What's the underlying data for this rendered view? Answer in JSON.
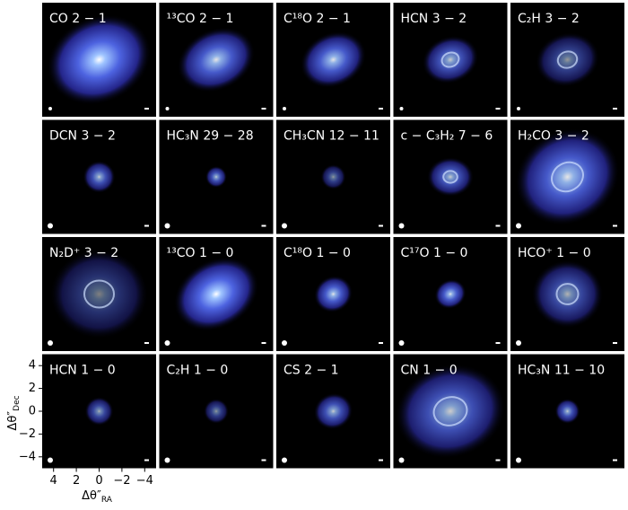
{
  "chart_data": {
    "type": "image_grid",
    "panels": [
      {
        "label": "CO 2 − 1"
      },
      {
        "label": "¹³CO 2 − 1"
      },
      {
        "label": "C¹⁸O 2 − 1"
      },
      {
        "label": "HCN 3 − 2"
      },
      {
        "label": "C₂H 3 − 2"
      },
      {
        "label": "DCN 3 − 2"
      },
      {
        "label": "HC₃N 29 − 28"
      },
      {
        "label": "CH₃CN 12 − 11"
      },
      {
        "label": "c − C₃H₂ 7 − 6"
      },
      {
        "label": "H₂CO 3 − 2"
      },
      {
        "label": "N₂D⁺ 3 − 2"
      },
      {
        "label": "¹³CO 1 − 0"
      },
      {
        "label": "C¹⁸O 1 − 0"
      },
      {
        "label": "C¹⁷O 1 − 0"
      },
      {
        "label": "HCO⁺ 1 − 0"
      },
      {
        "label": "HCN 1 − 0"
      },
      {
        "label": "C₂H 1 − 0"
      },
      {
        "label": "CS 2 − 1"
      },
      {
        "label": "CN 1 − 0"
      },
      {
        "label": "HC₃N 11 − 10"
      }
    ],
    "x_label": "Δθ″",
    "x_label_sub": "RA",
    "y_label": "Δθ″",
    "y_label_sub": "Dec",
    "xlim": [
      5,
      -5
    ],
    "ylim": [
      -5,
      5
    ],
    "xticks": [
      4,
      2,
      0,
      {
        "value": -2,
        "label": "−2"
      },
      {
        "value": -4,
        "label": "−4"
      }
    ],
    "yticks": [
      {
        "value": -4,
        "label": "−4"
      },
      {
        "value": -2,
        "label": "−2"
      },
      0,
      2,
      4
    ]
  }
}
